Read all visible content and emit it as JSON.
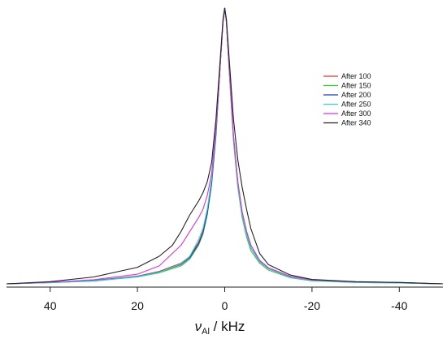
{
  "chart_data": {
    "type": "line",
    "title": "",
    "xlabel": {
      "symbol": "ν",
      "subscript": "Al",
      "unit": " / kHz"
    },
    "ylabel": "",
    "xlim": [
      50,
      -50
    ],
    "ylim": [
      0,
      1
    ],
    "x_reversed": true,
    "xticks": [
      40,
      20,
      0,
      -20,
      -40
    ],
    "xtick_labels": [
      "40",
      "20",
      "0",
      "-20",
      "-40"
    ],
    "grid": false,
    "legend_position": "top-right",
    "series": [
      {
        "name": "After 100",
        "color": "#e8333a",
        "points": [
          [
            50,
            0.0
          ],
          [
            40,
            0.005
          ],
          [
            30,
            0.012
          ],
          [
            20,
            0.028
          ],
          [
            15,
            0.045
          ],
          [
            10,
            0.075
          ],
          [
            8,
            0.1
          ],
          [
            6,
            0.15
          ],
          [
            5,
            0.19
          ],
          [
            4,
            0.26
          ],
          [
            3,
            0.37
          ],
          [
            2,
            0.55
          ],
          [
            1,
            0.8
          ],
          [
            0.4,
            0.95
          ],
          [
            0,
            1.0
          ],
          [
            -0.4,
            0.95
          ],
          [
            -1,
            0.78
          ],
          [
            -2,
            0.53
          ],
          [
            -3,
            0.36
          ],
          [
            -4,
            0.25
          ],
          [
            -5,
            0.18
          ],
          [
            -6,
            0.13
          ],
          [
            -8,
            0.08
          ],
          [
            -10,
            0.055
          ],
          [
            -15,
            0.025
          ],
          [
            -20,
            0.012
          ],
          [
            -30,
            0.006
          ],
          [
            -40,
            0.004
          ],
          [
            -50,
            0.0
          ]
        ]
      },
      {
        "name": "After 150",
        "color": "#33cc33",
        "points": [
          [
            50,
            0.0
          ],
          [
            40,
            0.004
          ],
          [
            30,
            0.01
          ],
          [
            20,
            0.025
          ],
          [
            15,
            0.04
          ],
          [
            10,
            0.065
          ],
          [
            8,
            0.09
          ],
          [
            6,
            0.14
          ],
          [
            5,
            0.18
          ],
          [
            4,
            0.25
          ],
          [
            3,
            0.36
          ],
          [
            2,
            0.54
          ],
          [
            1,
            0.8
          ],
          [
            0.4,
            0.95
          ],
          [
            0,
            1.0
          ],
          [
            -0.4,
            0.95
          ],
          [
            -1,
            0.78
          ],
          [
            -2,
            0.52
          ],
          [
            -3,
            0.35
          ],
          [
            -4,
            0.24
          ],
          [
            -5,
            0.17
          ],
          [
            -6,
            0.12
          ],
          [
            -8,
            0.075
          ],
          [
            -10,
            0.05
          ],
          [
            -15,
            0.022
          ],
          [
            -20,
            0.011
          ],
          [
            -30,
            0.005
          ],
          [
            -40,
            0.003
          ],
          [
            -50,
            0.0
          ]
        ]
      },
      {
        "name": "After 200",
        "color": "#2a3ab0",
        "points": [
          [
            50,
            0.0
          ],
          [
            40,
            0.005
          ],
          [
            30,
            0.012
          ],
          [
            20,
            0.027
          ],
          [
            15,
            0.043
          ],
          [
            10,
            0.07
          ],
          [
            8,
            0.095
          ],
          [
            6,
            0.145
          ],
          [
            5,
            0.185
          ],
          [
            4,
            0.255
          ],
          [
            3,
            0.365
          ],
          [
            2,
            0.545
          ],
          [
            1,
            0.8
          ],
          [
            0.4,
            0.95
          ],
          [
            0,
            1.0
          ],
          [
            -0.4,
            0.95
          ],
          [
            -1,
            0.79
          ],
          [
            -2,
            0.54
          ],
          [
            -3,
            0.37
          ],
          [
            -4,
            0.26
          ],
          [
            -5,
            0.19
          ],
          [
            -6,
            0.14
          ],
          [
            -8,
            0.085
          ],
          [
            -10,
            0.058
          ],
          [
            -15,
            0.027
          ],
          [
            -20,
            0.013
          ],
          [
            -30,
            0.006
          ],
          [
            -40,
            0.004
          ],
          [
            -50,
            0.0
          ]
        ]
      },
      {
        "name": "After 250",
        "color": "#33ccdd",
        "points": [
          [
            50,
            0.0
          ],
          [
            40,
            0.004
          ],
          [
            30,
            0.011
          ],
          [
            20,
            0.026
          ],
          [
            15,
            0.042
          ],
          [
            10,
            0.072
          ],
          [
            8,
            0.1
          ],
          [
            6,
            0.16
          ],
          [
            5,
            0.2
          ],
          [
            4,
            0.27
          ],
          [
            3,
            0.38
          ],
          [
            2,
            0.56
          ],
          [
            1,
            0.8
          ],
          [
            0.4,
            0.95
          ],
          [
            0,
            1.0
          ],
          [
            -0.4,
            0.95
          ],
          [
            -1,
            0.78
          ],
          [
            -2,
            0.53
          ],
          [
            -3,
            0.36
          ],
          [
            -4,
            0.25
          ],
          [
            -5,
            0.18
          ],
          [
            -6,
            0.13
          ],
          [
            -8,
            0.08
          ],
          [
            -10,
            0.055
          ],
          [
            -15,
            0.024
          ],
          [
            -20,
            0.012
          ],
          [
            -30,
            0.005
          ],
          [
            -40,
            0.003
          ],
          [
            -50,
            0.0
          ]
        ]
      },
      {
        "name": "After 300",
        "color": "#dd33dd",
        "points": [
          [
            50,
            0.0
          ],
          [
            40,
            0.006
          ],
          [
            30,
            0.015
          ],
          [
            20,
            0.035
          ],
          [
            15,
            0.065
          ],
          [
            10,
            0.14
          ],
          [
            8,
            0.19
          ],
          [
            6,
            0.24
          ],
          [
            5,
            0.27
          ],
          [
            4,
            0.32
          ],
          [
            3,
            0.4
          ],
          [
            2,
            0.57
          ],
          [
            1,
            0.8
          ],
          [
            0.4,
            0.95
          ],
          [
            0,
            1.0
          ],
          [
            -0.4,
            0.95
          ],
          [
            -1,
            0.79
          ],
          [
            -2,
            0.54
          ],
          [
            -3,
            0.37
          ],
          [
            -4,
            0.26
          ],
          [
            -5,
            0.19
          ],
          [
            -6,
            0.14
          ],
          [
            -8,
            0.085
          ],
          [
            -10,
            0.058
          ],
          [
            -15,
            0.027
          ],
          [
            -20,
            0.014
          ],
          [
            -30,
            0.007
          ],
          [
            -40,
            0.005
          ],
          [
            -50,
            0.0
          ]
        ]
      },
      {
        "name": "After 340",
        "color": "#222222",
        "points": [
          [
            50,
            0.0
          ],
          [
            40,
            0.008
          ],
          [
            30,
            0.025
          ],
          [
            20,
            0.06
          ],
          [
            15,
            0.1
          ],
          [
            12,
            0.14
          ],
          [
            10,
            0.19
          ],
          [
            8,
            0.25
          ],
          [
            6,
            0.3
          ],
          [
            5,
            0.33
          ],
          [
            4,
            0.37
          ],
          [
            3,
            0.44
          ],
          [
            2,
            0.6
          ],
          [
            1,
            0.82
          ],
          [
            0.4,
            0.96
          ],
          [
            0,
            1.0
          ],
          [
            -0.4,
            0.96
          ],
          [
            -1,
            0.82
          ],
          [
            -2,
            0.6
          ],
          [
            -3,
            0.45
          ],
          [
            -4,
            0.35
          ],
          [
            -5,
            0.27
          ],
          [
            -6,
            0.2
          ],
          [
            -8,
            0.11
          ],
          [
            -10,
            0.07
          ],
          [
            -15,
            0.032
          ],
          [
            -20,
            0.016
          ],
          [
            -30,
            0.008
          ],
          [
            -40,
            0.005
          ],
          [
            -50,
            0.0
          ]
        ]
      }
    ]
  }
}
